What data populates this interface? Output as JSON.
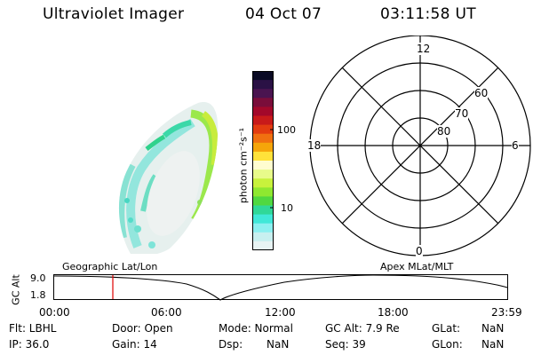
{
  "header": {
    "instrument": "Ultraviolet Imager",
    "date": "04 Oct 07",
    "time": "03:11:58 UT"
  },
  "colorbar": {
    "unit_label": "photon cm⁻²s⁻¹",
    "ticks": [
      "100",
      "10"
    ],
    "colors": [
      "#0a0a24",
      "#2a1145",
      "#4a1450",
      "#7a0d3a",
      "#a3082a",
      "#c81a1a",
      "#e33c10",
      "#f07010",
      "#f5a50a",
      "#ffe23a",
      "#fffdd0",
      "#e8fb8a",
      "#c8f23c",
      "#8fe830",
      "#50d840",
      "#30d898",
      "#40e8d8",
      "#8cf0f0",
      "#c8f0f0",
      "#e8f4f4"
    ]
  },
  "polar": {
    "mlt_labels": [
      "12",
      "18",
      "6",
      "0"
    ],
    "lat_labels": [
      "60",
      "70",
      "80"
    ]
  },
  "timeline": {
    "ylabel": "GC Alt",
    "y_ticks": [
      "9.0",
      "1.8"
    ],
    "left_label": "Geographic Lat/Lon",
    "right_label": "Apex MLat/MLT",
    "x_ticks": [
      "00:00",
      "06:00",
      "12:00",
      "18:00",
      "23:59"
    ],
    "marker_color": "#e00000"
  },
  "status": {
    "flt": "Flt: LBHL",
    "ip": "IP: 36.0",
    "door": "Door: Open",
    "gain": "Gain: 14",
    "mode": "Mode: Normal",
    "dsp_label": "Dsp:",
    "dsp_value": "NaN",
    "gc_alt": "GC Alt: 7.9 Re",
    "seq": "Seq: 39",
    "glat_label": "GLat:",
    "glat_value": "NaN",
    "glon_label": "GLon:",
    "glon_value": "NaN"
  }
}
